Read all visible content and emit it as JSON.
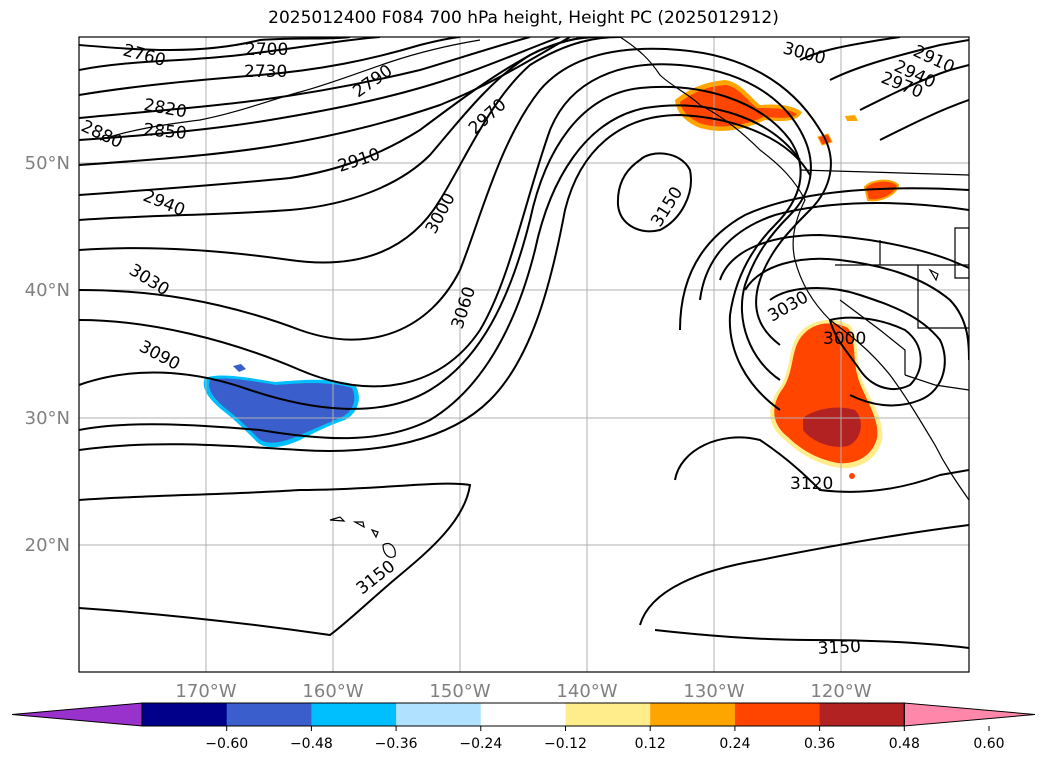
{
  "title": "2025012400 F084 700 hPa height, Height PC (2025012912)",
  "lat_labels": [
    "50°N",
    "40°N",
    "30°N",
    "20°N"
  ],
  "lon_labels": [
    "170°W",
    "160°W",
    "150°W",
    "140°W",
    "130°W",
    "120°W"
  ],
  "contour_labels": [
    "2760",
    "2700",
    "2730",
    "2790",
    "2820",
    "2850",
    "2880",
    "2910",
    "2940",
    "2970",
    "3000",
    "3030",
    "3060",
    "3090",
    "3150",
    "3000",
    "2910",
    "2940",
    "2970",
    "3030",
    "3000",
    "3120",
    "3150",
    "3150",
    "3150"
  ],
  "colorbar": {
    "ticks": [
      "−0.60",
      "−0.48",
      "−0.36",
      "−0.24",
      "−0.12",
      "0.12",
      "0.24",
      "0.36",
      "0.48",
      "0.60"
    ],
    "colors": [
      "#9932cc",
      "#00008b",
      "#3a5fcd",
      "#00bfff",
      "#b0e2ff",
      "#ffffff",
      "#ffec8b",
      "#ffa500",
      "#ff4500",
      "#b22222",
      "#ff88aa"
    ]
  }
}
